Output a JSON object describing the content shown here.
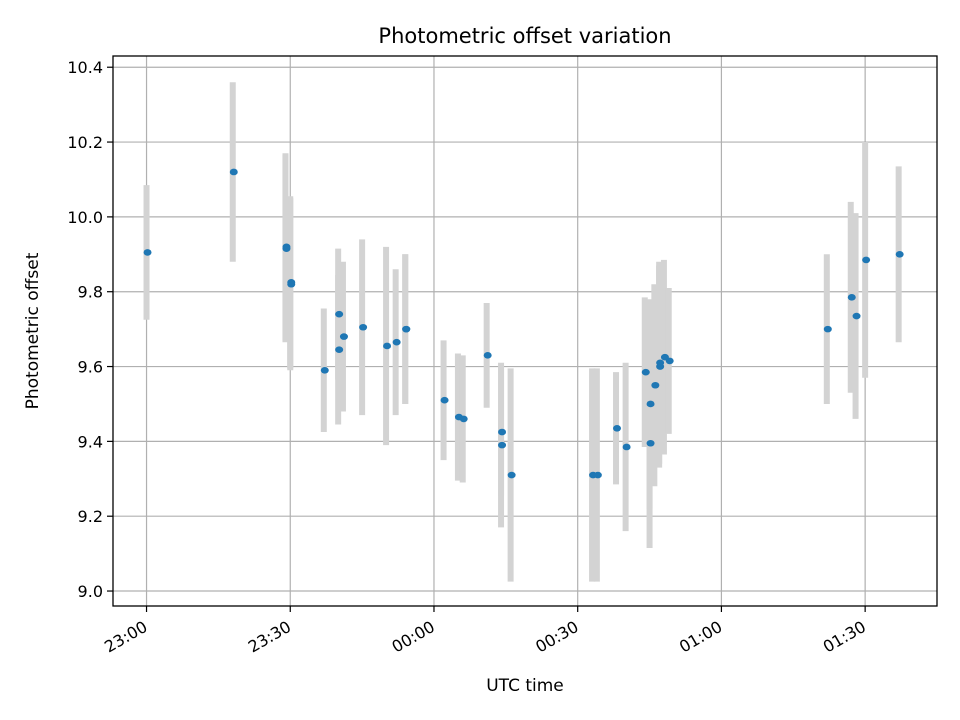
{
  "chart_data": {
    "type": "scatter",
    "title": "Photometric offset variation",
    "xlabel": "UTC time",
    "ylabel": "Photometric offset",
    "x_axis": "time",
    "xlim": [
      "22:53",
      "01:45"
    ],
    "ylim": [
      8.96,
      10.43
    ],
    "x_ticks": [
      "23:00",
      "23:30",
      "00:00",
      "00:30",
      "01:00",
      "01:30"
    ],
    "y_ticks": [
      "9.0",
      "9.2",
      "9.4",
      "9.6",
      "9.8",
      "10.0",
      "10.2",
      "10.4"
    ],
    "grid": true,
    "point_color": "#1f77b4",
    "errorbar_color": "#d3d3d3",
    "points": [
      {
        "x": "23:00",
        "y": 9.905,
        "err": 0.18
      },
      {
        "x": "23:18",
        "y": 10.12,
        "err": 0.24
      },
      {
        "x": "23:29",
        "y": 9.92,
        "err": 0.25
      },
      {
        "x": "23:29",
        "y": 9.915,
        "err": 0.25
      },
      {
        "x": "23:30",
        "y": 9.82,
        "err": 0.23
      },
      {
        "x": "23:30",
        "y": 9.825,
        "err": 0.23
      },
      {
        "x": "23:37",
        "y": 9.59,
        "err": 0.165
      },
      {
        "x": "23:40",
        "y": 9.74,
        "err": 0.175
      },
      {
        "x": "23:40",
        "y": 9.645,
        "err": 0.2
      },
      {
        "x": "23:41",
        "y": 9.68,
        "err": 0.2
      },
      {
        "x": "23:45",
        "y": 9.705,
        "err": 0.235
      },
      {
        "x": "23:50",
        "y": 9.655,
        "err": 0.265
      },
      {
        "x": "23:52",
        "y": 9.665,
        "err": 0.195
      },
      {
        "x": "23:54",
        "y": 9.7,
        "err": 0.2
      },
      {
        "x": "23:54",
        "y": 9.7,
        "err": 0.2
      },
      {
        "x": "00:02",
        "y": 9.51,
        "err": 0.16
      },
      {
        "x": "00:05",
        "y": 9.465,
        "err": 0.17
      },
      {
        "x": "00:06",
        "y": 9.46,
        "err": 0.17
      },
      {
        "x": "00:11",
        "y": 9.63,
        "err": 0.14
      },
      {
        "x": "00:14",
        "y": 9.425,
        "err": 0.17
      },
      {
        "x": "00:14",
        "y": 9.39,
        "err": 0.22
      },
      {
        "x": "00:16",
        "y": 9.31,
        "err": 0.285
      },
      {
        "x": "00:33",
        "y": 9.31,
        "err": 0.285
      },
      {
        "x": "00:34",
        "y": 9.31,
        "err": 0.285
      },
      {
        "x": "00:38",
        "y": 9.435,
        "err": 0.15
      },
      {
        "x": "00:40",
        "y": 9.385,
        "err": 0.225
      },
      {
        "x": "00:44",
        "y": 9.585,
        "err": 0.2
      },
      {
        "x": "00:45",
        "y": 9.395,
        "err": 0.28
      },
      {
        "x": "00:45",
        "y": 9.5,
        "err": 0.28
      },
      {
        "x": "00:46",
        "y": 9.55,
        "err": 0.27
      },
      {
        "x": "00:47",
        "y": 9.6,
        "err": 0.27
      },
      {
        "x": "00:47",
        "y": 9.61,
        "err": 0.27
      },
      {
        "x": "00:48",
        "y": 9.625,
        "err": 0.26
      },
      {
        "x": "00:49",
        "y": 9.615,
        "err": 0.195
      },
      {
        "x": "01:22",
        "y": 9.7,
        "err": 0.2
      },
      {
        "x": "01:27",
        "y": 9.785,
        "err": 0.255
      },
      {
        "x": "01:28",
        "y": 9.735,
        "err": 0.275
      },
      {
        "x": "01:30",
        "y": 9.885,
        "err": 0.315
      },
      {
        "x": "01:37",
        "y": 9.9,
        "err": 0.235
      }
    ]
  }
}
